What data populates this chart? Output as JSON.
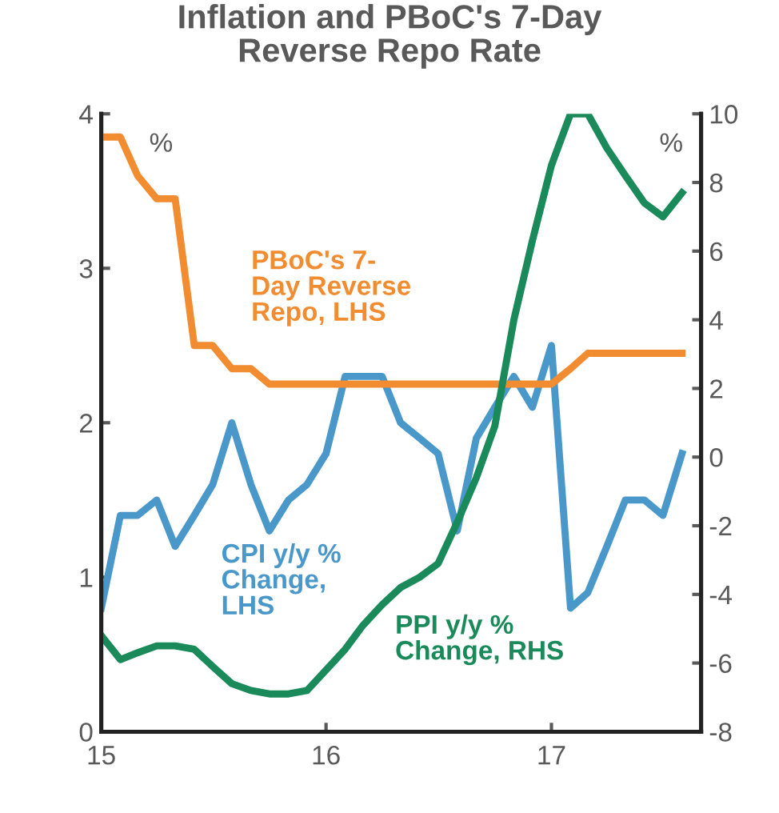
{
  "chart_data": {
    "type": "line",
    "title": "Inflation and PBoC's 7-Day\nReverse Repo Rate",
    "x": [
      "2015-01",
      "2015-02",
      "2015-03",
      "2015-04",
      "2015-05",
      "2015-06",
      "2015-07",
      "2015-08",
      "2015-09",
      "2015-10",
      "2015-11",
      "2015-12",
      "2016-01",
      "2016-02",
      "2016-03",
      "2016-04",
      "2016-05",
      "2016-06",
      "2016-07",
      "2016-08",
      "2016-09",
      "2016-10",
      "2016-11",
      "2016-12",
      "2017-01",
      "2017-02",
      "2017-03",
      "2017-04",
      "2017-05",
      "2017-06",
      "2017-07",
      "2017-08"
    ],
    "series": [
      {
        "name": "PBoC's 7-\nDay Reverse\nRepo, LHS",
        "color": "#f28c30",
        "values": [
          3.85,
          3.85,
          3.6,
          3.45,
          3.45,
          2.5,
          2.5,
          2.35,
          2.35,
          2.25,
          2.25,
          2.25,
          2.25,
          2.25,
          2.25,
          2.25,
          2.25,
          2.25,
          2.25,
          2.25,
          2.25,
          2.25,
          2.25,
          2.25,
          2.25,
          2.35,
          2.45,
          2.45,
          2.45,
          2.45,
          2.45,
          2.45
        ]
      },
      {
        "name": "CPI y/y %\nChange,\nLHS",
        "color": "#4a98c9",
        "values": [
          0.8,
          1.4,
          1.4,
          1.5,
          1.2,
          1.4,
          1.6,
          2.0,
          1.6,
          1.3,
          1.5,
          1.6,
          1.8,
          2.3,
          2.3,
          2.3,
          2.0,
          1.9,
          1.8,
          1.3,
          1.9,
          2.1,
          2.3,
          2.1,
          2.5,
          0.8,
          0.9,
          1.2,
          1.5,
          1.5,
          1.4,
          1.8
        ]
      },
      {
        "name": "PPI y/y %\nChange, RHS",
        "color": "#1a8a5a",
        "axis": "y2",
        "values": [
          -5.2,
          -5.9,
          -5.7,
          -5.5,
          -5.5,
          -5.6,
          -6.1,
          -6.6,
          -6.8,
          -6.9,
          -6.9,
          -6.8,
          -6.2,
          -5.6,
          -4.9,
          -4.3,
          -3.8,
          -3.5,
          -3.1,
          -1.9,
          -0.6,
          0.9,
          4.0,
          6.3,
          8.5,
          10,
          10,
          9.0,
          8.2,
          7.4,
          7.0,
          7.7
        ]
      }
    ],
    "xlim": [
      "2015-01",
      "2017-09"
    ],
    "xticks": [
      {
        "value": "2015-01",
        "label": "15"
      },
      {
        "value": "2016-01",
        "label": "16"
      },
      {
        "value": "2017-01",
        "label": "17"
      }
    ],
    "ylim": [
      0,
      4
    ],
    "yticks": [
      0,
      1,
      2,
      3,
      4
    ],
    "y2lim": [
      -8,
      10
    ],
    "y2ticks": [
      -8,
      -6,
      -4,
      -2,
      0,
      2,
      4,
      6,
      8,
      10
    ],
    "ylabel": "%",
    "y2label": "%",
    "grid": false,
    "legend": false,
    "line_style": "solid",
    "marker": "none"
  }
}
